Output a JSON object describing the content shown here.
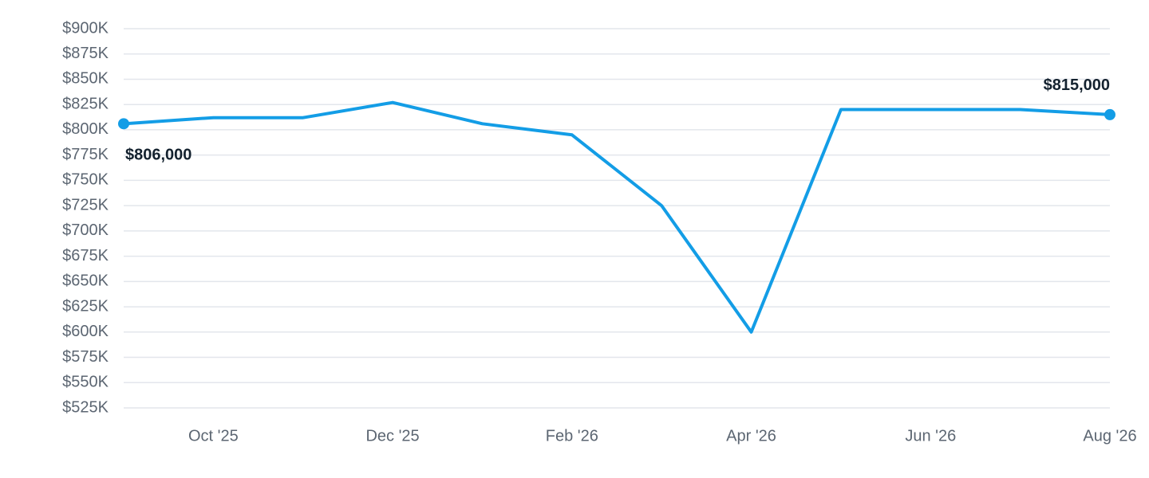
{
  "chart_data": {
    "type": "line",
    "categories": [
      null,
      "Oct '25",
      null,
      "Dec '25",
      null,
      "Feb '26",
      null,
      "Apr '26",
      null,
      "Jun '26",
      null,
      "Aug '26"
    ],
    "values": [
      806,
      812,
      812,
      827,
      806,
      795,
      725,
      600,
      820,
      820,
      820,
      815
    ],
    "value_labels": [
      "$806,000",
      null,
      null,
      null,
      null,
      null,
      null,
      null,
      null,
      null,
      null,
      "$815,000"
    ],
    "color": "#139de6",
    "ylim": [
      525,
      900
    ],
    "yticks": [
      {
        "value": 525,
        "label": "$525K"
      },
      {
        "value": 550,
        "label": "$550K"
      },
      {
        "value": 575,
        "label": "$575K"
      },
      {
        "value": 600,
        "label": "$600K"
      },
      {
        "value": 625,
        "label": "$625K"
      },
      {
        "value": 650,
        "label": "$650K"
      },
      {
        "value": 675,
        "label": "$675K"
      },
      {
        "value": 700,
        "label": "$700K"
      },
      {
        "value": 725,
        "label": "$725K"
      },
      {
        "value": 750,
        "label": "$750K"
      },
      {
        "value": 775,
        "label": "$775K"
      },
      {
        "value": 800,
        "label": "$800K"
      },
      {
        "value": 825,
        "label": "$825K"
      },
      {
        "value": 850,
        "label": "$850K"
      },
      {
        "value": 875,
        "label": "$875K"
      },
      {
        "value": 900,
        "label": "$900K"
      }
    ],
    "grid": true
  }
}
